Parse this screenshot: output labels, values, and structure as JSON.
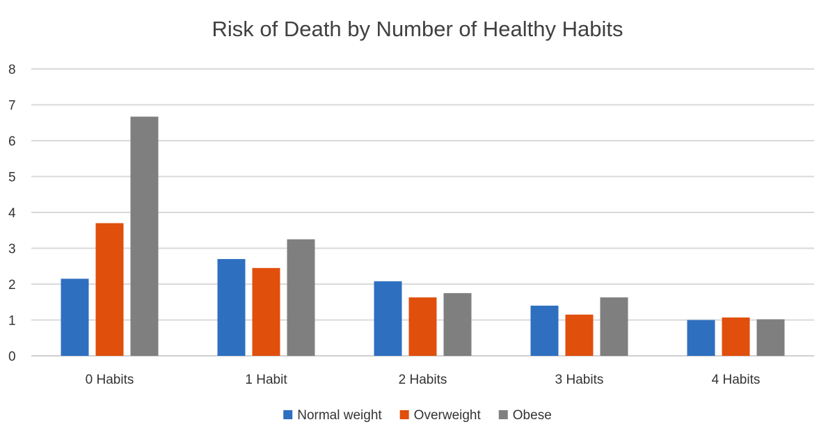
{
  "chart_data": {
    "type": "bar",
    "title": "Risk of Death by Number of Healthy Habits",
    "xlabel": "",
    "ylabel": "",
    "categories": [
      "0 Habits",
      "1 Habit",
      "2 Habits",
      "3 Habits",
      "4 Habits"
    ],
    "series": [
      {
        "name": "Normal weight",
        "color": "#2e6fc0",
        "values": [
          2.15,
          2.7,
          2.08,
          1.4,
          1.0
        ]
      },
      {
        "name": "Overweight",
        "color": "#e04f0c",
        "values": [
          3.7,
          2.45,
          1.63,
          1.15,
          1.07
        ]
      },
      {
        "name": "Obese",
        "color": "#7f7f7f",
        "values": [
          6.67,
          3.25,
          1.75,
          1.63,
          1.02
        ]
      }
    ],
    "ylim": [
      0,
      8
    ],
    "yticks": [
      0,
      1,
      2,
      3,
      4,
      5,
      6,
      7,
      8
    ],
    "grid": true,
    "legend_position": "bottom-center"
  }
}
